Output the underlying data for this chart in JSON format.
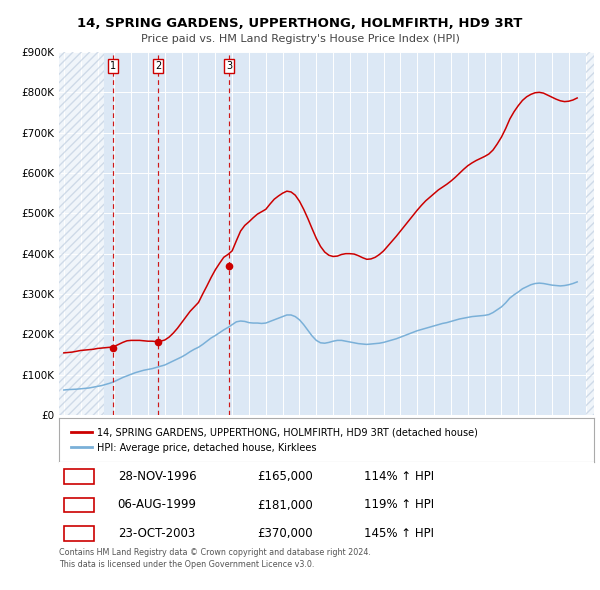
{
  "title": "14, SPRING GARDENS, UPPERTHONG, HOLMFIRTH, HD9 3RT",
  "subtitle": "Price paid vs. HM Land Registry's House Price Index (HPI)",
  "plot_bg_color": "#dce8f5",
  "hatch_color": "#c8d4e8",
  "hpi_color": "#7ab0d8",
  "price_color": "#cc0000",
  "ylim": [
    0,
    900000
  ],
  "xlim_start": 1993.7,
  "xlim_end": 2025.5,
  "hatch_end": 1996.4,
  "transactions": [
    {
      "year": 1996.91,
      "price": 165000,
      "label": "1"
    },
    {
      "year": 1999.59,
      "price": 181000,
      "label": "2"
    },
    {
      "year": 2003.81,
      "price": 370000,
      "label": "3"
    }
  ],
  "table_rows": [
    {
      "num": "1",
      "date": "28-NOV-1996",
      "price": "£165,000",
      "hpi": "114% ↑ HPI"
    },
    {
      "num": "2",
      "date": "06-AUG-1999",
      "price": "£181,000",
      "hpi": "119% ↑ HPI"
    },
    {
      "num": "3",
      "date": "23-OCT-2003",
      "price": "£370,000",
      "hpi": "145% ↑ HPI"
    }
  ],
  "footer": "Contains HM Land Registry data © Crown copyright and database right 2024.\nThis data is licensed under the Open Government Licence v3.0.",
  "legend_price_label": "14, SPRING GARDENS, UPPERTHONG, HOLMFIRTH, HD9 3RT (detached house)",
  "legend_hpi_label": "HPI: Average price, detached house, Kirklees",
  "hpi_data_x": [
    1994.0,
    1994.25,
    1994.5,
    1994.75,
    1995.0,
    1995.25,
    1995.5,
    1995.75,
    1996.0,
    1996.25,
    1996.5,
    1996.75,
    1997.0,
    1997.25,
    1997.5,
    1997.75,
    1998.0,
    1998.25,
    1998.5,
    1998.75,
    1999.0,
    1999.25,
    1999.5,
    1999.75,
    2000.0,
    2000.25,
    2000.5,
    2000.75,
    2001.0,
    2001.25,
    2001.5,
    2001.75,
    2002.0,
    2002.25,
    2002.5,
    2002.75,
    2003.0,
    2003.25,
    2003.5,
    2003.75,
    2004.0,
    2004.25,
    2004.5,
    2004.75,
    2005.0,
    2005.25,
    2005.5,
    2005.75,
    2006.0,
    2006.25,
    2006.5,
    2006.75,
    2007.0,
    2007.25,
    2007.5,
    2007.75,
    2008.0,
    2008.25,
    2008.5,
    2008.75,
    2009.0,
    2009.25,
    2009.5,
    2009.75,
    2010.0,
    2010.25,
    2010.5,
    2010.75,
    2011.0,
    2011.25,
    2011.5,
    2011.75,
    2012.0,
    2012.25,
    2012.5,
    2012.75,
    2013.0,
    2013.25,
    2013.5,
    2013.75,
    2014.0,
    2014.25,
    2014.5,
    2014.75,
    2015.0,
    2015.25,
    2015.5,
    2015.75,
    2016.0,
    2016.25,
    2016.5,
    2016.75,
    2017.0,
    2017.25,
    2017.5,
    2017.75,
    2018.0,
    2018.25,
    2018.5,
    2018.75,
    2019.0,
    2019.25,
    2019.5,
    2019.75,
    2020.0,
    2020.25,
    2020.5,
    2020.75,
    2021.0,
    2021.25,
    2021.5,
    2021.75,
    2022.0,
    2022.25,
    2022.5,
    2022.75,
    2023.0,
    2023.25,
    2023.5,
    2023.75,
    2024.0,
    2024.25,
    2024.5
  ],
  "hpi_data_y": [
    62000,
    63000,
    63500,
    64000,
    65000,
    66000,
    67000,
    69000,
    71000,
    73000,
    76000,
    79000,
    83000,
    88000,
    93000,
    97000,
    101000,
    105000,
    108000,
    111000,
    113000,
    115000,
    118000,
    121000,
    124000,
    129000,
    134000,
    139000,
    144000,
    150000,
    157000,
    163000,
    168000,
    175000,
    183000,
    191000,
    197000,
    204000,
    211000,
    217000,
    224000,
    231000,
    233000,
    232000,
    229000,
    228000,
    228000,
    227000,
    228000,
    232000,
    236000,
    240000,
    244000,
    248000,
    248000,
    244000,
    236000,
    224000,
    210000,
    196000,
    185000,
    179000,
    178000,
    180000,
    183000,
    185000,
    185000,
    183000,
    181000,
    179000,
    177000,
    176000,
    175000,
    176000,
    177000,
    178000,
    180000,
    183000,
    186000,
    189000,
    193000,
    197000,
    201000,
    205000,
    209000,
    212000,
    215000,
    218000,
    221000,
    224000,
    227000,
    229000,
    232000,
    235000,
    238000,
    240000,
    242000,
    244000,
    245000,
    246000,
    247000,
    249000,
    254000,
    261000,
    268000,
    278000,
    290000,
    298000,
    305000,
    313000,
    318000,
    323000,
    326000,
    327000,
    326000,
    324000,
    322000,
    321000,
    320000,
    321000,
    323000,
    326000,
    330000
  ],
  "price_data_x": [
    1994.0,
    1994.25,
    1994.5,
    1994.75,
    1995.0,
    1995.25,
    1995.5,
    1995.75,
    1996.0,
    1996.25,
    1996.5,
    1996.75,
    1997.0,
    1997.25,
    1997.5,
    1997.75,
    1998.0,
    1998.25,
    1998.5,
    1998.75,
    1999.0,
    1999.25,
    1999.5,
    1999.75,
    2000.0,
    2000.25,
    2000.5,
    2000.75,
    2001.0,
    2001.25,
    2001.5,
    2001.75,
    2002.0,
    2002.25,
    2002.5,
    2002.75,
    2003.0,
    2003.25,
    2003.5,
    2003.75,
    2004.0,
    2004.25,
    2004.5,
    2004.75,
    2005.0,
    2005.25,
    2005.5,
    2005.75,
    2006.0,
    2006.25,
    2006.5,
    2006.75,
    2007.0,
    2007.25,
    2007.5,
    2007.75,
    2008.0,
    2008.25,
    2008.5,
    2008.75,
    2009.0,
    2009.25,
    2009.5,
    2009.75,
    2010.0,
    2010.25,
    2010.5,
    2010.75,
    2011.0,
    2011.25,
    2011.5,
    2011.75,
    2012.0,
    2012.25,
    2012.5,
    2012.75,
    2013.0,
    2013.25,
    2013.5,
    2013.75,
    2014.0,
    2014.25,
    2014.5,
    2014.75,
    2015.0,
    2015.25,
    2015.5,
    2015.75,
    2016.0,
    2016.25,
    2016.5,
    2016.75,
    2017.0,
    2017.25,
    2017.5,
    2017.75,
    2018.0,
    2018.25,
    2018.5,
    2018.75,
    2019.0,
    2019.25,
    2019.5,
    2019.75,
    2020.0,
    2020.25,
    2020.5,
    2020.75,
    2021.0,
    2021.25,
    2021.5,
    2021.75,
    2022.0,
    2022.25,
    2022.5,
    2022.75,
    2023.0,
    2023.25,
    2023.5,
    2023.75,
    2024.0,
    2024.25,
    2024.5
  ],
  "price_data_y": [
    154000,
    155000,
    156000,
    158000,
    160000,
    161000,
    162000,
    163000,
    165000,
    166000,
    167000,
    168000,
    170000,
    175000,
    180000,
    184000,
    185000,
    185000,
    185000,
    184000,
    183000,
    183000,
    182000,
    183000,
    186000,
    193000,
    203000,
    215000,
    229000,
    243000,
    257000,
    268000,
    279000,
    300000,
    320000,
    341000,
    360000,
    376000,
    391000,
    398000,
    407000,
    432000,
    456000,
    470000,
    479000,
    489000,
    498000,
    504000,
    510000,
    523000,
    535000,
    543000,
    550000,
    555000,
    553000,
    545000,
    530000,
    510000,
    487000,
    462000,
    438000,
    418000,
    404000,
    396000,
    393000,
    394000,
    398000,
    400000,
    400000,
    399000,
    395000,
    390000,
    386000,
    387000,
    391000,
    398000,
    407000,
    419000,
    431000,
    443000,
    456000,
    469000,
    482000,
    495000,
    508000,
    520000,
    531000,
    540000,
    549000,
    558000,
    565000,
    572000,
    580000,
    589000,
    599000,
    609000,
    618000,
    625000,
    631000,
    636000,
    641000,
    647000,
    657000,
    672000,
    689000,
    710000,
    734000,
    752000,
    767000,
    780000,
    789000,
    795000,
    799000,
    800000,
    798000,
    793000,
    788000,
    783000,
    779000,
    777000,
    778000,
    781000,
    786000
  ]
}
